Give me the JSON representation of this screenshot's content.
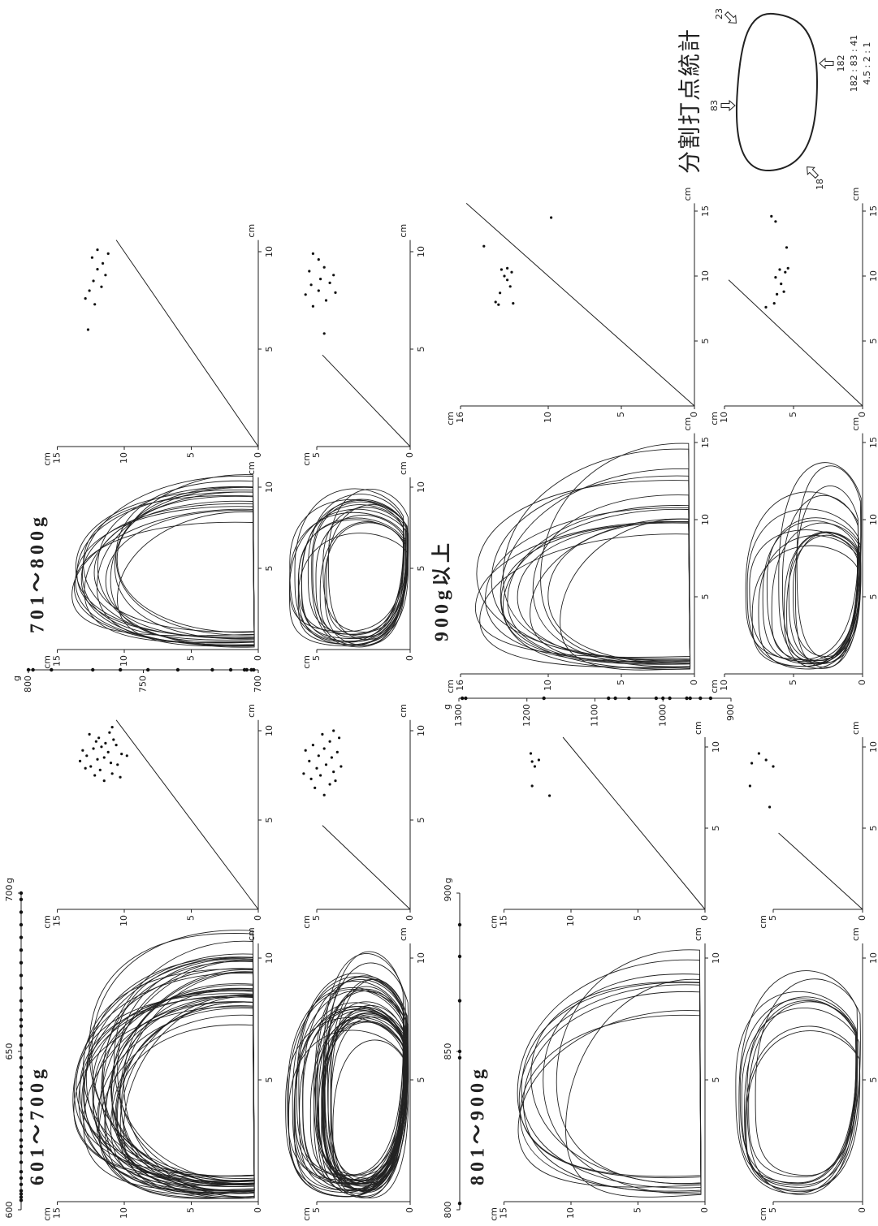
{
  "units": {
    "length": "cm",
    "weight": "g"
  },
  "diagram": {
    "title": "分割打点統計",
    "top": 83,
    "bottom": 182,
    "lower_left": 18,
    "upper_right": 23,
    "ratios": [
      "182 : 83 : 41",
      "4.5 : 2 : 1"
    ]
  },
  "groups": [
    {
      "title": "601～700g",
      "weight": {
        "ticks": [
          600,
          650,
          700
        ],
        "values": [
          603,
          604,
          605,
          606,
          608,
          610,
          612,
          615,
          618,
          620,
          622,
          625,
          628,
          630,
          632,
          635,
          638,
          640,
          642,
          645,
          648,
          652,
          655,
          658,
          660,
          663,
          666,
          670,
          674,
          678,
          682,
          686,
          690,
          694,
          698,
          700
        ]
      },
      "profile": {
        "xticks": [
          5,
          10
        ],
        "yticks": [
          0,
          5,
          10,
          15
        ]
      },
      "plan": {
        "xticks": [
          5,
          10
        ],
        "yticks": [
          0,
          5
        ]
      },
      "scatter_lw": {
        "xticks": [
          5,
          10
        ],
        "yticks": [
          0,
          5,
          10,
          15
        ],
        "points": [
          [
            7.2,
            11.5
          ],
          [
            7.5,
            12.2
          ],
          [
            7.8,
            11.8
          ],
          [
            8,
            12.5
          ],
          [
            8.2,
            11
          ],
          [
            8.4,
            12
          ],
          [
            8.5,
            11.5
          ],
          [
            8.6,
            12.8
          ],
          [
            8.8,
            11.2
          ],
          [
            9,
            12.3
          ],
          [
            9.1,
            11.7
          ],
          [
            9.3,
            11.4
          ],
          [
            9.4,
            12.1
          ],
          [
            9.6,
            11.9
          ],
          [
            9.8,
            12.6
          ],
          [
            8.1,
            10.5
          ],
          [
            8.7,
            10.2
          ],
          [
            9.2,
            10.6
          ],
          [
            7.6,
            10.9
          ],
          [
            8.9,
            13.1
          ],
          [
            9.9,
            11.1
          ],
          [
            7.9,
            12.9
          ],
          [
            8.3,
            13.3
          ],
          [
            9.5,
            10.8
          ],
          [
            10.2,
            10.9
          ],
          [
            7.4,
            10.3
          ],
          [
            8.6,
            9.8
          ]
        ]
      },
      "scatter_wt": {
        "xticks": [
          5,
          10
        ],
        "yticks": [
          0,
          5
        ],
        "points": [
          [
            6.4,
            4.6
          ],
          [
            6.8,
            5.1
          ],
          [
            7,
            4.3
          ],
          [
            7.3,
            5.3
          ],
          [
            7.5,
            4.8
          ],
          [
            7.7,
            4.1
          ],
          [
            7.9,
            5
          ],
          [
            8.1,
            4.5
          ],
          [
            8.3,
            5.4
          ],
          [
            8.5,
            4.2
          ],
          [
            8.6,
            4.9
          ],
          [
            8.8,
            3.9
          ],
          [
            9,
            4.6
          ],
          [
            9.2,
            5.2
          ],
          [
            9.4,
            4.3
          ],
          [
            9.6,
            3.8
          ],
          [
            9.8,
            4.7
          ],
          [
            10,
            4.1
          ],
          [
            7.2,
            4.0
          ],
          [
            8.0,
            3.7
          ],
          [
            8.9,
            5.6
          ],
          [
            7.6,
            5.7
          ]
        ]
      }
    },
    {
      "title": "701～800g",
      "weight": {
        "ticks": [
          700,
          750,
          800
        ],
        "values": [
          702,
          703,
          705,
          706,
          712,
          720,
          735,
          748,
          760,
          772,
          790,
          798,
          800
        ]
      },
      "profile": {
        "xticks": [
          5,
          10
        ],
        "yticks": [
          0,
          5,
          10,
          15
        ]
      },
      "plan": {
        "xticks": [
          5,
          10
        ],
        "yticks": [
          0,
          5
        ]
      },
      "scatter_lw": {
        "xticks": [
          5,
          10
        ],
        "yticks": [
          0,
          5,
          10,
          15
        ],
        "points": [
          [
            6,
            12.7
          ],
          [
            7.3,
            12.2
          ],
          [
            7.6,
            12.9
          ],
          [
            8,
            12.6
          ],
          [
            8.2,
            11.7
          ],
          [
            8.5,
            12.3
          ],
          [
            8.8,
            11.4
          ],
          [
            9.1,
            12
          ],
          [
            9.4,
            11.6
          ],
          [
            9.7,
            12.4
          ],
          [
            10.1,
            12
          ],
          [
            9.9,
            11.2
          ]
        ]
      },
      "scatter_wt": {
        "xticks": [
          5,
          10
        ],
        "yticks": [
          0,
          5
        ],
        "points": [
          [
            5.8,
            4.6
          ],
          [
            7.2,
            5.2
          ],
          [
            7.5,
            4.5
          ],
          [
            7.8,
            5.6
          ],
          [
            8,
            4.9
          ],
          [
            8.3,
            5.3
          ],
          [
            8.4,
            4.3
          ],
          [
            8.6,
            4.8
          ],
          [
            9,
            5.4
          ],
          [
            9.2,
            4.6
          ],
          [
            9.6,
            4.9
          ],
          [
            9.9,
            5.2
          ],
          [
            8.8,
            4.1
          ],
          [
            7.9,
            4.0
          ]
        ]
      }
    },
    {
      "title": "801～900g",
      "weight": {
        "ticks": [
          800,
          850,
          900
        ],
        "values": [
          802,
          848,
          850,
          866,
          880,
          890
        ]
      },
      "profile": {
        "xticks": [
          5,
          10
        ],
        "yticks": [
          0,
          5,
          10,
          15
        ]
      },
      "plan": {
        "xticks": [
          5,
          10
        ],
        "yticks": [
          0,
          5
        ]
      },
      "scatter_lw": {
        "xticks": [
          5,
          10
        ],
        "yticks": [
          0,
          5,
          10,
          15
        ],
        "points": [
          [
            7,
            11.6
          ],
          [
            7.6,
            12.9
          ],
          [
            8.8,
            12.7
          ],
          [
            9.2,
            12.4
          ],
          [
            9.6,
            13
          ],
          [
            9.1,
            12.9
          ]
        ]
      },
      "scatter_wt": {
        "xticks": [
          5,
          10
        ],
        "yticks": [
          0,
          5
        ],
        "points": [
          [
            6.3,
            5.2
          ],
          [
            7.6,
            6.3
          ],
          [
            9,
            6.2
          ],
          [
            9.2,
            5.4
          ],
          [
            9.6,
            5.8
          ],
          [
            8.8,
            5.0
          ]
        ]
      }
    },
    {
      "title": "900g以上",
      "weight": {
        "ticks": [
          900,
          1000,
          1100,
          1200,
          1300
        ],
        "values": [
          930,
          945,
          960,
          965,
          990,
          1000,
          1010,
          1050,
          1070,
          1080,
          1175,
          1290,
          1295
        ]
      },
      "profile": {
        "xticks": [
          5,
          10,
          15
        ],
        "yticks": [
          0,
          5,
          10,
          16
        ]
      },
      "plan": {
        "xticks": [
          5,
          10,
          15
        ],
        "yticks": [
          0,
          5,
          10
        ]
      },
      "scatter_lw": {
        "xticks": [
          5,
          10,
          15
        ],
        "yticks": [
          0,
          5,
          10,
          16
        ],
        "points": [
          [
            7.8,
            13.4
          ],
          [
            8,
            13.6
          ],
          [
            8.7,
            13.3
          ],
          [
            9.2,
            12.6
          ],
          [
            9.7,
            12.8
          ],
          [
            10,
            13
          ],
          [
            10.3,
            12.5
          ],
          [
            10.5,
            13.2
          ],
          [
            10.6,
            12.8
          ],
          [
            7.9,
            12.4
          ],
          [
            12.3,
            14.4
          ],
          [
            14.5,
            9.8
          ]
        ]
      },
      "scatter_wt": {
        "xticks": [
          5,
          10,
          15
        ],
        "yticks": [
          0,
          5,
          10
        ],
        "points": [
          [
            7.6,
            7.0
          ],
          [
            7.9,
            6.4
          ],
          [
            8.6,
            6.2
          ],
          [
            8.8,
            5.7
          ],
          [
            9.4,
            5.9
          ],
          [
            9.9,
            6.3
          ],
          [
            10.3,
            5.6
          ],
          [
            10.5,
            6.0
          ],
          [
            10.6,
            5.4
          ],
          [
            12.2,
            5.5
          ],
          [
            14.2,
            6.3
          ],
          [
            14.6,
            6.6
          ]
        ]
      }
    }
  ]
}
